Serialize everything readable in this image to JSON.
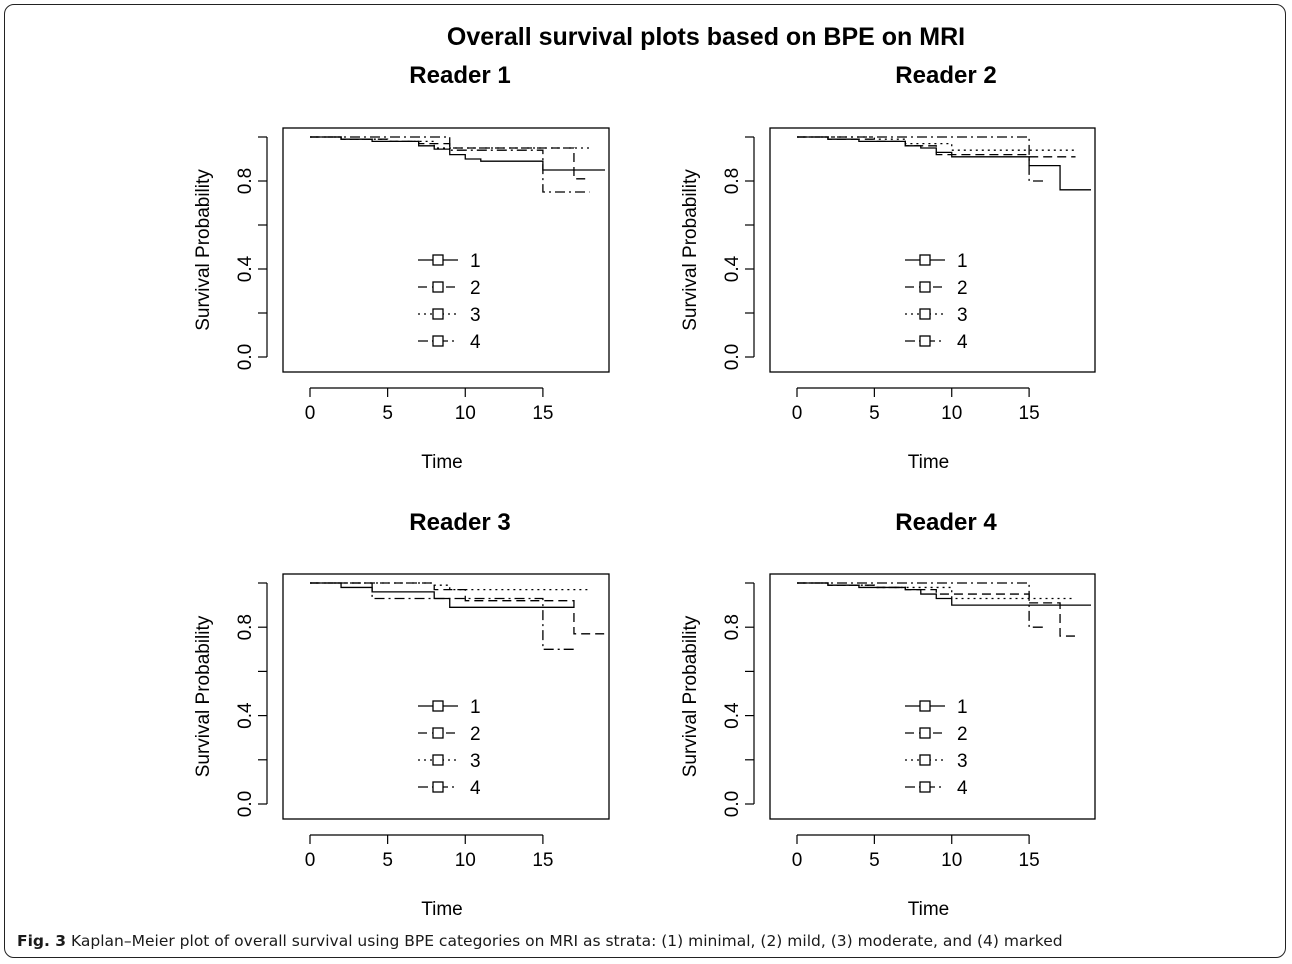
{
  "figure": {
    "title": "Overall survival plots based on BPE on MRI",
    "caption_label": "Fig. 3",
    "caption_text": "Kaplan–Meier plot of overall survival using BPE categories on MRI as strata: (1) minimal, (2) mild, (3) moderate, and (4) marked"
  },
  "chart_data": [
    {
      "type": "line",
      "step": true,
      "title": "Reader 1",
      "xlabel": "Time",
      "ylabel": "Survival Probability",
      "xlim": [
        0,
        19
      ],
      "ylim": [
        0,
        1
      ],
      "xticks": [
        0,
        5,
        10,
        15
      ],
      "yticks": [
        0.0,
        0.4,
        0.8
      ],
      "ytick_labels": [
        "0.0",
        "0.4",
        "0.8"
      ],
      "legend": [
        "1",
        "2",
        "3",
        "4"
      ],
      "series": [
        {
          "x": [
            0,
            2,
            4,
            7,
            8,
            9,
            10,
            11,
            15,
            19
          ],
          "values": [
            1.0,
            0.99,
            0.98,
            0.96,
            0.945,
            0.92,
            0.9,
            0.89,
            0.85,
            0.85
          ]
        },
        {
          "x": [
            0,
            2,
            5,
            7,
            9,
            15,
            17,
            18
          ],
          "values": [
            1.0,
            0.99,
            0.98,
            0.97,
            0.95,
            0.95,
            0.81,
            0.81
          ]
        },
        {
          "x": [
            0,
            2,
            5,
            8,
            18
          ],
          "values": [
            1.0,
            0.99,
            0.98,
            0.95,
            0.95
          ]
        },
        {
          "x": [
            0,
            9,
            15,
            18
          ],
          "values": [
            1.0,
            0.94,
            0.75,
            0.75
          ]
        }
      ]
    },
    {
      "type": "line",
      "step": true,
      "title": "Reader 2",
      "xlabel": "Time",
      "ylabel": "Survival Probability",
      "xlim": [
        0,
        19
      ],
      "ylim": [
        0,
        1
      ],
      "xticks": [
        0,
        5,
        10,
        15
      ],
      "yticks": [
        0.0,
        0.4,
        0.8
      ],
      "ytick_labels": [
        "0.0",
        "0.4",
        "0.8"
      ],
      "legend": [
        "1",
        "2",
        "3",
        "4"
      ],
      "series": [
        {
          "x": [
            0,
            2,
            4,
            7,
            8,
            9,
            10,
            11,
            15,
            17,
            19
          ],
          "values": [
            1.0,
            0.99,
            0.98,
            0.96,
            0.95,
            0.93,
            0.91,
            0.91,
            0.87,
            0.76,
            0.76
          ]
        },
        {
          "x": [
            0,
            2,
            5,
            7,
            9,
            15,
            18
          ],
          "values": [
            1.0,
            0.99,
            0.98,
            0.96,
            0.92,
            0.91,
            0.91
          ]
        },
        {
          "x": [
            0,
            5,
            7,
            10,
            18
          ],
          "values": [
            1.0,
            0.99,
            0.97,
            0.94,
            0.94
          ]
        },
        {
          "x": [
            0,
            15,
            16
          ],
          "values": [
            1.0,
            0.8,
            0.8
          ]
        }
      ]
    },
    {
      "type": "line",
      "step": true,
      "title": "Reader 3",
      "xlabel": "Time",
      "ylabel": "Survival Probability",
      "xlim": [
        0,
        19
      ],
      "ylim": [
        0,
        1
      ],
      "xticks": [
        0,
        5,
        10,
        15
      ],
      "yticks": [
        0.0,
        0.4,
        0.8
      ],
      "ytick_labels": [
        "0.0",
        "0.4",
        "0.8"
      ],
      "legend": [
        "1",
        "2",
        "3",
        "4"
      ],
      "series": [
        {
          "x": [
            0,
            2,
            4,
            8,
            9,
            15,
            17
          ],
          "values": [
            1.0,
            0.98,
            0.96,
            0.93,
            0.89,
            0.89,
            0.89
          ]
        },
        {
          "x": [
            0,
            5,
            8,
            10,
            17,
            19
          ],
          "values": [
            1.0,
            1.0,
            0.97,
            0.92,
            0.77,
            0.77
          ]
        },
        {
          "x": [
            0,
            8,
            9,
            18
          ],
          "values": [
            1.0,
            0.99,
            0.97,
            0.97
          ]
        },
        {
          "x": [
            0,
            4,
            8,
            15,
            17
          ],
          "values": [
            1.0,
            0.93,
            0.93,
            0.7,
            0.7
          ]
        }
      ]
    },
    {
      "type": "line",
      "step": true,
      "title": "Reader 4",
      "xlabel": "Time",
      "ylabel": "Survival Probability",
      "xlim": [
        0,
        19
      ],
      "ylim": [
        0,
        1
      ],
      "xticks": [
        0,
        5,
        10,
        15
      ],
      "yticks": [
        0.0,
        0.4,
        0.8
      ],
      "ytick_labels": [
        "0.0",
        "0.4",
        "0.8"
      ],
      "legend": [
        "1",
        "2",
        "3",
        "4"
      ],
      "series": [
        {
          "x": [
            0,
            2,
            4,
            7,
            8,
            9,
            10,
            15,
            19
          ],
          "values": [
            1.0,
            0.99,
            0.98,
            0.97,
            0.95,
            0.93,
            0.9,
            0.9,
            0.9
          ]
        },
        {
          "x": [
            0,
            2,
            5,
            7,
            9,
            15,
            17,
            18
          ],
          "values": [
            1.0,
            0.99,
            0.98,
            0.97,
            0.95,
            0.91,
            0.76,
            0.76
          ]
        },
        {
          "x": [
            0,
            2,
            5,
            10,
            18
          ],
          "values": [
            1.0,
            0.99,
            0.98,
            0.93,
            0.93
          ]
        },
        {
          "x": [
            0,
            15,
            16
          ],
          "values": [
            1.0,
            0.8,
            0.8
          ]
        }
      ]
    }
  ]
}
